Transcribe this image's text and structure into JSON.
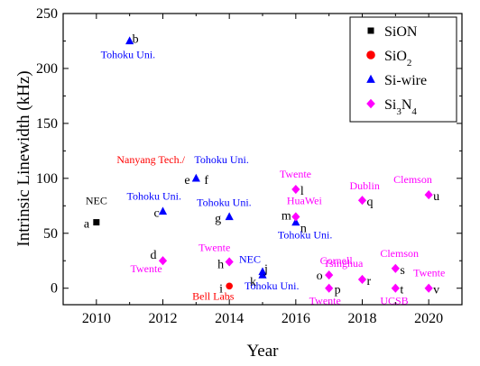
{
  "chart_data": {
    "type": "scatter",
    "xlabel": "Year",
    "ylabel": "Intrinsic Linewidth (kHz)",
    "xlim": [
      2009,
      2021
    ],
    "ylim": [
      -15,
      250
    ],
    "xticks": [
      2010,
      2012,
      2014,
      2016,
      2018,
      2020
    ],
    "yticks": [
      0,
      50,
      100,
      150,
      200,
      250
    ],
    "grid": false,
    "legend_position": "top-right",
    "series": [
      {
        "name": "SiON",
        "marker": "square",
        "color": "#000000",
        "points": [
          {
            "x": 2010,
            "y": 60
          }
        ]
      },
      {
        "name": "SiO2",
        "marker": "circle",
        "color": "#ff0000",
        "points": [
          {
            "x": 2014,
            "y": 2
          }
        ]
      },
      {
        "name": "Si-wire",
        "marker": "triangle",
        "color": "#0000ff",
        "points": [
          {
            "x": 2011,
            "y": 225
          },
          {
            "x": 2012,
            "y": 70
          },
          {
            "x": 2013,
            "y": 100
          },
          {
            "x": 2014,
            "y": 65
          },
          {
            "x": 2015,
            "y": 15
          },
          {
            "x": 2015,
            "y": 12
          },
          {
            "x": 2016,
            "y": 60
          }
        ]
      },
      {
        "name": "Si3N4",
        "marker": "diamond",
        "color": "#ff00ff",
        "points": [
          {
            "x": 2012,
            "y": 25
          },
          {
            "x": 2014,
            "y": 24
          },
          {
            "x": 2016,
            "y": 90
          },
          {
            "x": 2016,
            "y": 65
          },
          {
            "x": 2017,
            "y": 12
          },
          {
            "x": 2017,
            "y": 0
          },
          {
            "x": 2018,
            "y": 80
          },
          {
            "x": 2018,
            "y": 8
          },
          {
            "x": 2019,
            "y": 18
          },
          {
            "x": 2019,
            "y": 0
          },
          {
            "x": 2020,
            "y": 85
          },
          {
            "x": 2020,
            "y": 0
          }
        ]
      }
    ],
    "letters": [
      {
        "text": "a",
        "x": 2010,
        "y": 60
      },
      {
        "text": "b",
        "x": 2011,
        "y": 225
      },
      {
        "text": "c",
        "x": 2012,
        "y": 70
      },
      {
        "text": "d",
        "x": 2012,
        "y": 25
      },
      {
        "text": "e",
        "x": 2013,
        "y": 100
      },
      {
        "text": "f",
        "x": 2013,
        "y": 100
      },
      {
        "text": "g",
        "x": 2014,
        "y": 65
      },
      {
        "text": "h",
        "x": 2014,
        "y": 24
      },
      {
        "text": "i",
        "x": 2014,
        "y": 2
      },
      {
        "text": "j",
        "x": 2015,
        "y": 15
      },
      {
        "text": "k",
        "x": 2015,
        "y": 12
      },
      {
        "text": "l",
        "x": 2016,
        "y": 90
      },
      {
        "text": "m",
        "x": 2016,
        "y": 65
      },
      {
        "text": "n",
        "x": 2016,
        "y": 60
      },
      {
        "text": "o",
        "x": 2017,
        "y": 12
      },
      {
        "text": "p",
        "x": 2017,
        "y": 0
      },
      {
        "text": "q",
        "x": 2018,
        "y": 80
      },
      {
        "text": "r",
        "x": 2018,
        "y": 8
      },
      {
        "text": "s",
        "x": 2019,
        "y": 18
      },
      {
        "text": "t",
        "x": 2019,
        "y": 0
      },
      {
        "text": "u",
        "x": 2020,
        "y": 85
      },
      {
        "text": "v",
        "x": 2020,
        "y": 0
      }
    ],
    "annotations": [
      {
        "text": "NEC",
        "color": "#000000",
        "x": 2010,
        "y": 60
      },
      {
        "text": "Tohoku Uni.",
        "color": "#0000ff",
        "x": 2011,
        "y": 225
      },
      {
        "text": "Nanyang Tech./",
        "color": "#ff0000",
        "x": 2013,
        "y": 100
      },
      {
        "text": "Tohoku Uni.",
        "color": "#0000ff",
        "x": 2013,
        "y": 100
      },
      {
        "text": "Tohoku Uni.",
        "color": "#0000ff",
        "x": 2012,
        "y": 70
      },
      {
        "text": "Twente",
        "color": "#ff00ff",
        "x": 2012,
        "y": 25
      },
      {
        "text": "Tohoku Uni.",
        "color": "#0000ff",
        "x": 2014,
        "y": 65
      },
      {
        "text": "Twente",
        "color": "#ff00ff",
        "x": 2014,
        "y": 24
      },
      {
        "text": "Bell Labs",
        "color": "#ff0000",
        "x": 2014,
        "y": 2
      },
      {
        "text": "NEC",
        "color": "#0000ff",
        "x": 2015,
        "y": 15
      },
      {
        "text": "Tohoku Uni.",
        "color": "#0000ff",
        "x": 2015,
        "y": 12
      },
      {
        "text": "Twente",
        "color": "#ff00ff",
        "x": 2016,
        "y": 90
      },
      {
        "text": "HuaWei",
        "color": "#ff00ff",
        "x": 2016,
        "y": 65
      },
      {
        "text": "Tohoku Uni.",
        "color": "#0000ff",
        "x": 2016,
        "y": 60
      },
      {
        "text": "Cornell",
        "color": "#ff00ff",
        "x": 2017,
        "y": 12
      },
      {
        "text": "Twente",
        "color": "#ff00ff",
        "x": 2017,
        "y": 0
      },
      {
        "text": "Dublin",
        "color": "#ff00ff",
        "x": 2018,
        "y": 80
      },
      {
        "text": "Tsinghua",
        "color": "#ff00ff",
        "x": 2018,
        "y": 8
      },
      {
        "text": "Clemson",
        "color": "#ff00ff",
        "x": 2019,
        "y": 18
      },
      {
        "text": "UCSB",
        "color": "#ff00ff",
        "x": 2019,
        "y": 0
      },
      {
        "text": "Clemson",
        "color": "#ff00ff",
        "x": 2020,
        "y": 85
      },
      {
        "text": "Twente",
        "color": "#ff00ff",
        "x": 2020,
        "y": 0
      }
    ]
  }
}
